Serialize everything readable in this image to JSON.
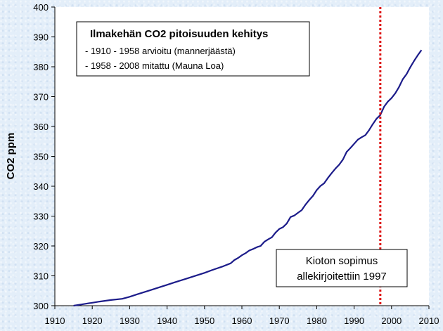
{
  "chart_data": {
    "type": "line",
    "title": "Ilmakehän CO2 pitoisuuden kehitys",
    "subtitle_lines": [
      "- 1910 - 1958 arvioitu (mannerjäästä)",
      "- 1958 - 2008 mitattu (Mauna Loa)"
    ],
    "xlabel": "",
    "ylabel": "CO2 ppm",
    "xlim": [
      1910,
      2010
    ],
    "ylim": [
      300,
      400
    ],
    "xticks": [
      1910,
      1920,
      1930,
      1940,
      1950,
      1960,
      1970,
      1980,
      1990,
      2000,
      2010
    ],
    "yticks": [
      300,
      310,
      320,
      330,
      340,
      350,
      360,
      370,
      380,
      390,
      400
    ],
    "grid": false,
    "series": [
      {
        "color": "#1c1c8a",
        "x": [
          1915,
          1918,
          1920,
          1922,
          1925,
          1928,
          1930,
          1932,
          1935,
          1938,
          1940,
          1942,
          1945,
          1948,
          1950,
          1952,
          1955,
          1957,
          1958,
          1959,
          1960,
          1961,
          1962,
          1963,
          1964,
          1965,
          1966,
          1967,
          1968,
          1969,
          1970,
          1971,
          1972,
          1973,
          1974,
          1975,
          1976,
          1977,
          1978,
          1979,
          1980,
          1981,
          1982,
          1983,
          1984,
          1985,
          1986,
          1987,
          1988,
          1989,
          1990,
          1991,
          1992,
          1993,
          1994,
          1995,
          1996,
          1997,
          1998,
          1999,
          2000,
          2001,
          2002,
          2003,
          2004,
          2005,
          2006,
          2007,
          2008
        ],
        "y": [
          300.0,
          300.6,
          301.0,
          301.4,
          301.9,
          302.3,
          303.0,
          303.8,
          305.0,
          306.2,
          307.0,
          307.8,
          309.0,
          310.2,
          311.0,
          311.9,
          313.2,
          314.2,
          315.3,
          316.0,
          316.9,
          317.6,
          318.5,
          319.0,
          319.6,
          320.0,
          321.4,
          322.2,
          322.9,
          324.5,
          325.7,
          326.3,
          327.5,
          329.7,
          330.2,
          331.1,
          332.0,
          333.8,
          335.4,
          336.8,
          338.7,
          340.1,
          341.0,
          342.8,
          344.4,
          345.9,
          347.2,
          348.9,
          351.5,
          352.8,
          354.2,
          355.6,
          356.4,
          357.1,
          358.8,
          360.8,
          362.6,
          363.8,
          366.6,
          368.3,
          369.5,
          371.1,
          373.2,
          375.8,
          377.5,
          379.8,
          381.9,
          383.8,
          385.6
        ]
      }
    ],
    "reference_line": {
      "x": 1997,
      "color": "#dd1111",
      "style": "dotted"
    },
    "annotation": {
      "lines": [
        "Kioton sopimus",
        "allekirjoitettiin 1997"
      ]
    }
  }
}
